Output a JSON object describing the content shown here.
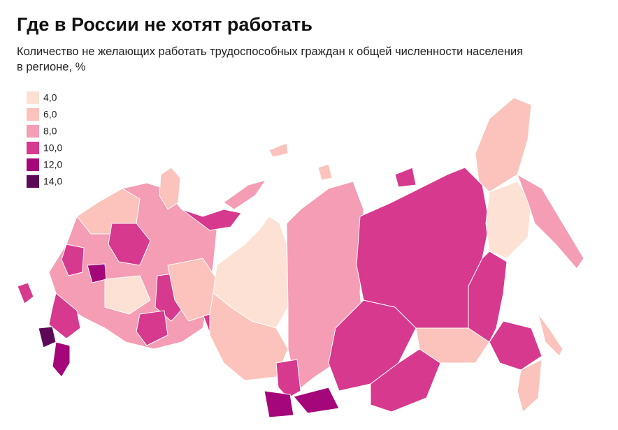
{
  "header": {
    "title": "Где в России не хотят работать",
    "subtitle_lines": [
      "Количество не желающих работать трудоспособных граждан к общей численности населения",
      "в регионе, %"
    ]
  },
  "legend": {
    "items": [
      {
        "label": "4,0",
        "color": "#fde1d4"
      },
      {
        "label": "6,0",
        "color": "#fbc3bb"
      },
      {
        "label": "8,0",
        "color": "#f49db4"
      },
      {
        "label": "10,0",
        "color": "#d6398e"
      },
      {
        "label": "12,0",
        "color": "#a5067a"
      },
      {
        "label": "14,0",
        "color": "#5c0a58"
      }
    ]
  }
}
